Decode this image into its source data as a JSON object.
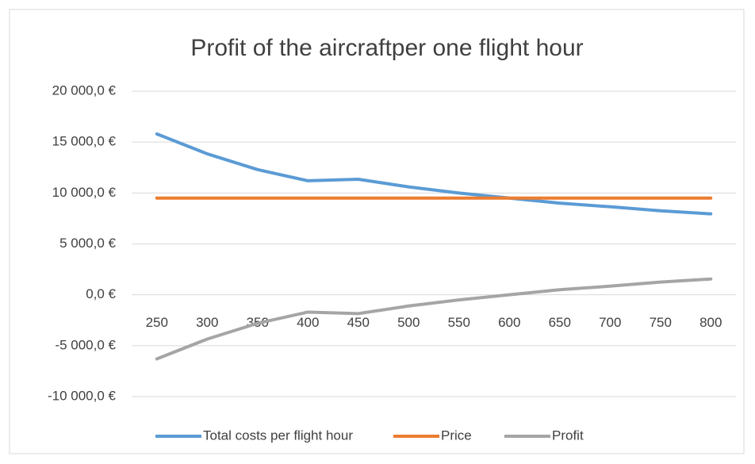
{
  "chart_data": {
    "type": "line",
    "title": "Profit of the aircraftper one flight hour",
    "categories": [
      "250",
      "300",
      "350",
      "400",
      "450",
      "500",
      "550",
      "600",
      "650",
      "700",
      "750",
      "800"
    ],
    "series": [
      {
        "name": "Total costs per flight hour",
        "color": "#5b9bd5",
        "values": [
          15800,
          13850,
          12300,
          11200,
          11350,
          10600,
          10000,
          9500,
          9000,
          8650,
          8250,
          7950
        ]
      },
      {
        "name": "Price",
        "color": "#ed7d31",
        "values": [
          9500,
          9500,
          9500,
          9500,
          9500,
          9500,
          9500,
          9500,
          9500,
          9500,
          9500,
          9500
        ]
      },
      {
        "name": "Profit",
        "color": "#a5a5a5",
        "values": [
          -6300,
          -4350,
          -2800,
          -1700,
          -1850,
          -1100,
          -500,
          0,
          500,
          850,
          1250,
          1550
        ]
      }
    ],
    "ylim": [
      -10000,
      20000
    ],
    "yticks": [
      {
        "value": -10000,
        "label": "-10 000,0 €"
      },
      {
        "value": -5000,
        "label": "-5 000,0 €"
      },
      {
        "value": 0,
        "label": "0,0 €"
      },
      {
        "value": 5000,
        "label": "5 000,0 €"
      },
      {
        "value": 10000,
        "label": "10 000,0 €"
      },
      {
        "value": 15000,
        "label": "15 000,0 €"
      },
      {
        "value": 20000,
        "label": "20 000,0 €"
      }
    ],
    "grid": true,
    "legend": "bottom"
  }
}
